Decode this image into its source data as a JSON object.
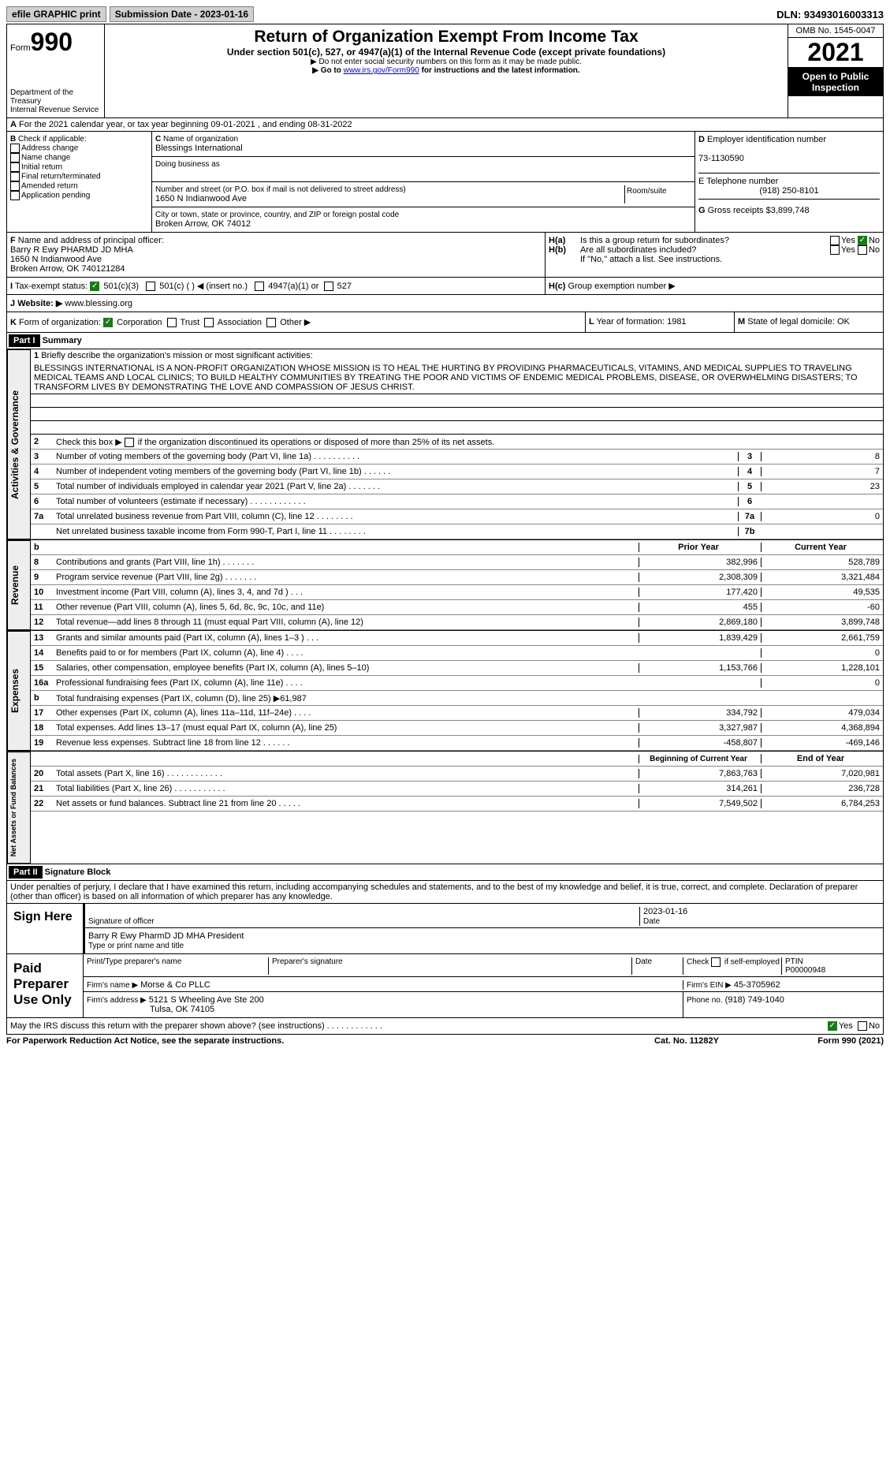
{
  "top": {
    "efile": "efile GRAPHIC print",
    "submit_label": "Submission Date - 2023-01-16",
    "dln": "DLN: 93493016003313"
  },
  "hdr": {
    "form": "Form",
    "num": "990",
    "title": "Return of Organization Exempt From Income Tax",
    "subtitle": "Under section 501(c), 527, or 4947(a)(1) of the Internal Revenue Code (except private foundations)",
    "note1": "▶ Do not enter social security numbers on this form as it may be made public.",
    "note2": "▶ Go to ",
    "link": "www.irs.gov/Form990",
    "note3": " for instructions and the latest information.",
    "dept": "Department of the Treasury",
    "irs": "Internal Revenue Service",
    "omb": "OMB No. 1545-0047",
    "year": "2021",
    "open": "Open to Public Inspection"
  },
  "A": {
    "text": "For the 2021 calendar year, or tax year beginning 09-01-2021    , and ending 08-31-2022"
  },
  "B": {
    "label": "Check if applicable:",
    "opts": [
      "Address change",
      "Name change",
      "Initial return",
      "Final return/terminated",
      "Amended return",
      "Application pending"
    ]
  },
  "C": {
    "name_label": "Name of organization",
    "name": "Blessings International",
    "dba_label": "Doing business as",
    "addr_label": "Number and street (or P.O. box if mail is not delivered to street address)",
    "room": "Room/suite",
    "addr": "1650 N Indianwood Ave",
    "city_label": "City or town, state or province, country, and ZIP or foreign postal code",
    "city": "Broken Arrow, OK  74012"
  },
  "D": {
    "label": "Employer identification number",
    "val": "73-1130590"
  },
  "E": {
    "label": "E Telephone number",
    "val": "(918) 250-8101"
  },
  "G": {
    "label": "G",
    "text": "Gross receipts $",
    "val": "3,899,748"
  },
  "F": {
    "label": "F",
    "text": "Name and address of principal officer:",
    "name": "Barry R Ewy PHARMD JD MHA",
    "addr1": "1650 N Indianwood Ave",
    "addr2": "Broken Arrow, OK  740121284"
  },
  "H": {
    "a": "Is this a group return for subordinates?",
    "b": "Are all subordinates included?",
    "note": "If \"No,\" attach a list. See instructions.",
    "c": "Group exemption number ▶",
    "yes": "Yes",
    "no": "No"
  },
  "I": {
    "label": "Tax-exempt status:",
    "o1": "501(c)(3)",
    "o2": "501(c) (  ) ◀ (insert no.)",
    "o3": "4947(a)(1) or",
    "o4": "527"
  },
  "J": {
    "label": "Website: ▶",
    "val": "www.blessing.org"
  },
  "K": {
    "label": "Form of organization:",
    "opts": [
      "Corporation",
      "Trust",
      "Association",
      "Other ▶"
    ]
  },
  "L": {
    "label": "Year of formation:",
    "val": "1981"
  },
  "M": {
    "label": "State of legal domicile:",
    "val": "OK"
  },
  "partI": {
    "label": "Part I",
    "title": "Summary"
  },
  "mission": {
    "num": "1",
    "label": "Briefly describe the organization's mission or most significant activities:",
    "text": "BLESSINGS INTERNATIONAL IS A NON-PROFIT ORGANIZATION WHOSE MISSION IS TO HEAL THE HURTING BY PROVIDING PHARMACEUTICALS, VITAMINS, AND MEDICAL SUPPLIES TO TRAVELING MEDICAL TEAMS AND LOCAL CLINICS; TO BUILD HEALTHY COMMUNITIES BY TREATING THE POOR AND VICTIMS OF ENDEMIC MEDICAL PROBLEMS, DISEASE, OR OVERWHELMING DISASTERS; TO TRANSFORM LIVES BY DEMONSTRATING THE LOVE AND COMPASSION OF JESUS CHRIST."
  },
  "gov": {
    "tab": "Activities & Governance",
    "l2": "Check this box ▶       if the organization discontinued its operations or disposed of more than 25% of its net assets.",
    "rows": [
      {
        "n": "3",
        "t": "Number of voting members of the governing body (Part VI, line 1a)  .  .  .  .  .  .  .  .  .  .",
        "c": "3",
        "v": "8"
      },
      {
        "n": "4",
        "t": "Number of independent voting members of the governing body (Part VI, line 1b)  .  .  .  .  .  .",
        "c": "4",
        "v": "7"
      },
      {
        "n": "5",
        "t": "Total number of individuals employed in calendar year 2021 (Part V, line 2a)  .  .  .  .  .  .  .",
        "c": "5",
        "v": "23"
      },
      {
        "n": "6",
        "t": "Total number of volunteers (estimate if necessary)  .  .  .  .  .  .  .  .  .  .  .  .",
        "c": "6",
        "v": ""
      },
      {
        "n": "7a",
        "t": "Total unrelated business revenue from Part VIII, column (C), line 12  .  .  .  .  .  .  .  .",
        "c": "7a",
        "v": "0"
      },
      {
        "n": "",
        "t": "Net unrelated business taxable income from Form 990-T, Part I, line 11  .  .  .  .  .  .  .  .",
        "c": "7b",
        "v": ""
      }
    ]
  },
  "rev": {
    "tab": "Revenue",
    "hdr_prior": "Prior Year",
    "hdr_curr": "Current Year",
    "rows": [
      {
        "n": "8",
        "t": "Contributions and grants (Part VIII, line 1h)  .  .  .  .  .  .  .",
        "p": "382,996",
        "c": "528,789"
      },
      {
        "n": "9",
        "t": "Program service revenue (Part VIII, line 2g)  .  .  .  .  .  .  .",
        "p": "2,308,309",
        "c": "3,321,484"
      },
      {
        "n": "10",
        "t": "Investment income (Part VIII, column (A), lines 3, 4, and 7d )  .  .  .",
        "p": "177,420",
        "c": "49,535"
      },
      {
        "n": "11",
        "t": "Other revenue (Part VIII, column (A), lines 5, 6d, 8c, 9c, 10c, and 11e)",
        "p": "455",
        "c": "-60"
      },
      {
        "n": "12",
        "t": "Total revenue—add lines 8 through 11 (must equal Part VIII, column (A), line 12)",
        "p": "2,869,180",
        "c": "3,899,748"
      }
    ]
  },
  "exp": {
    "tab": "Expenses",
    "rows": [
      {
        "n": "13",
        "t": "Grants and similar amounts paid (Part IX, column (A), lines 1–3 )  .  .  .",
        "p": "1,839,429",
        "c": "2,661,759"
      },
      {
        "n": "14",
        "t": "Benefits paid to or for members (Part IX, column (A), line 4)  .  .  .  .",
        "p": "",
        "c": "0"
      },
      {
        "n": "15",
        "t": "Salaries, other compensation, employee benefits (Part IX, column (A), lines 5–10)",
        "p": "1,153,766",
        "c": "1,228,101"
      },
      {
        "n": "16a",
        "t": "Professional fundraising fees (Part IX, column (A), line 11e)  .  .  .  .",
        "p": "",
        "c": "0"
      },
      {
        "n": "b",
        "t": "Total fundraising expenses (Part IX, column (D), line 25) ▶61,987",
        "shade": true
      },
      {
        "n": "17",
        "t": "Other expenses (Part IX, column (A), lines 11a–11d, 11f–24e)  .  .  .  .",
        "p": "334,792",
        "c": "479,034"
      },
      {
        "n": "18",
        "t": "Total expenses. Add lines 13–17 (must equal Part IX, column (A), line 25)",
        "p": "3,327,987",
        "c": "4,368,894"
      },
      {
        "n": "19",
        "t": "Revenue less expenses. Subtract line 18 from line 12  .  .  .  .  .  .",
        "p": "-458,807",
        "c": "-469,146"
      }
    ]
  },
  "net": {
    "tab": "Net Assets or Fund Balances",
    "hdr_prior": "Beginning of Current Year",
    "hdr_curr": "End of Year",
    "rows": [
      {
        "n": "20",
        "t": "Total assets (Part X, line 16)  .  .  .  .  .  .  .  .  .  .  .  .",
        "p": "7,863,763",
        "c": "7,020,981"
      },
      {
        "n": "21",
        "t": "Total liabilities (Part X, line 26)  .  .  .  .  .  .  .  .  .  .  .",
        "p": "314,261",
        "c": "236,728"
      },
      {
        "n": "22",
        "t": "Net assets or fund balances. Subtract line 21 from line 20  .  .  .  .  .",
        "p": "7,549,502",
        "c": "6,784,253"
      }
    ]
  },
  "partII": {
    "label": "Part II",
    "title": "Signature Block"
  },
  "perjury": "Under penalties of perjury, I declare that I have examined this return, including accompanying schedules and statements, and to the best of my knowledge and belief, it is true, correct, and complete. Declaration of preparer (other than officer) is based on all information of which preparer has any knowledge.",
  "sign": {
    "label": "Sign Here",
    "sig": "Signature of officer",
    "date_label": "Date",
    "date": "2023-01-16",
    "name": "Barry R Ewy PharmD JD MHA  President",
    "name_label": "Type or print name and title"
  },
  "paid": {
    "label": "Paid Preparer Use Only",
    "h1": "Print/Type preparer's name",
    "h2": "Preparer's signature",
    "h3": "Date",
    "h4": "Check        if self-employed",
    "h5": "PTIN",
    "ptin": "P00000948",
    "firm_label": "Firm's name   ▶",
    "firm": "Morse & Co PLLC",
    "ein_label": "Firm's EIN ▶",
    "ein": "45-3705962",
    "addr_label": "Firm's address ▶",
    "addr1": "5121 S Wheeling Ave Ste 200",
    "addr2": "Tulsa, OK  74105",
    "phone_label": "Phone no.",
    "phone": "(918) 749-1040"
  },
  "discuss": {
    "text": "May the IRS discuss this return with the preparer shown above? (see instructions)  .  .  .  .  .  .  .  .  .  .  .  .",
    "yes": "Yes",
    "no": "No"
  },
  "foot": {
    "pra": "For Paperwork Reduction Act Notice, see the separate instructions.",
    "cat": "Cat. No. 11282Y",
    "form": "Form 990 (2021)"
  }
}
